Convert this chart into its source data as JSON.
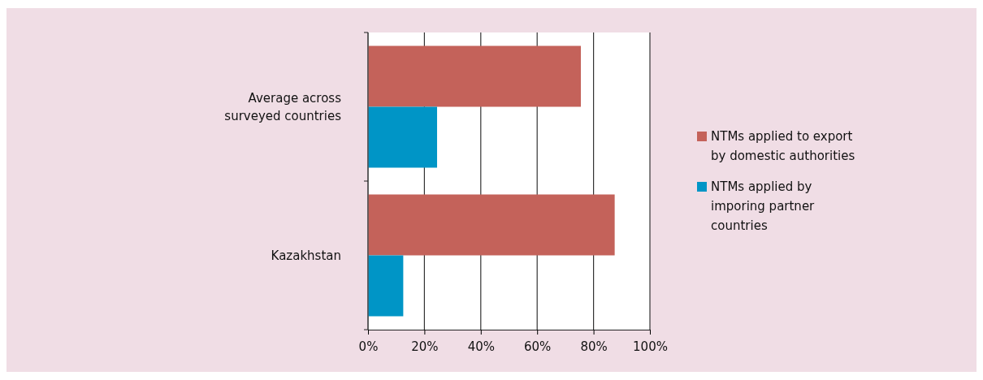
{
  "chart_data": {
    "type": "bar",
    "orientation": "horizontal",
    "categories": [
      "Average across surveyed countries",
      "Kazakhstan"
    ],
    "series": [
      {
        "name": "NTMs applied to export by domestic authorities",
        "color": "#c4625a",
        "values": [
          75.5,
          87.5
        ]
      },
      {
        "name": "NTMs applied by imporing partner countries",
        "color": "#0095c6",
        "values": [
          24.5,
          12.5
        ]
      }
    ],
    "xlim": [
      0,
      100
    ],
    "xticks": [
      {
        "value": 0,
        "label": "0%"
      },
      {
        "value": 20,
        "label": "20%"
      },
      {
        "value": 40,
        "label": "40%"
      },
      {
        "value": 60,
        "label": "60%"
      },
      {
        "value": 80,
        "label": "80%"
      },
      {
        "value": 100,
        "label": "100%"
      }
    ],
    "grid": "x",
    "legend": "right"
  }
}
